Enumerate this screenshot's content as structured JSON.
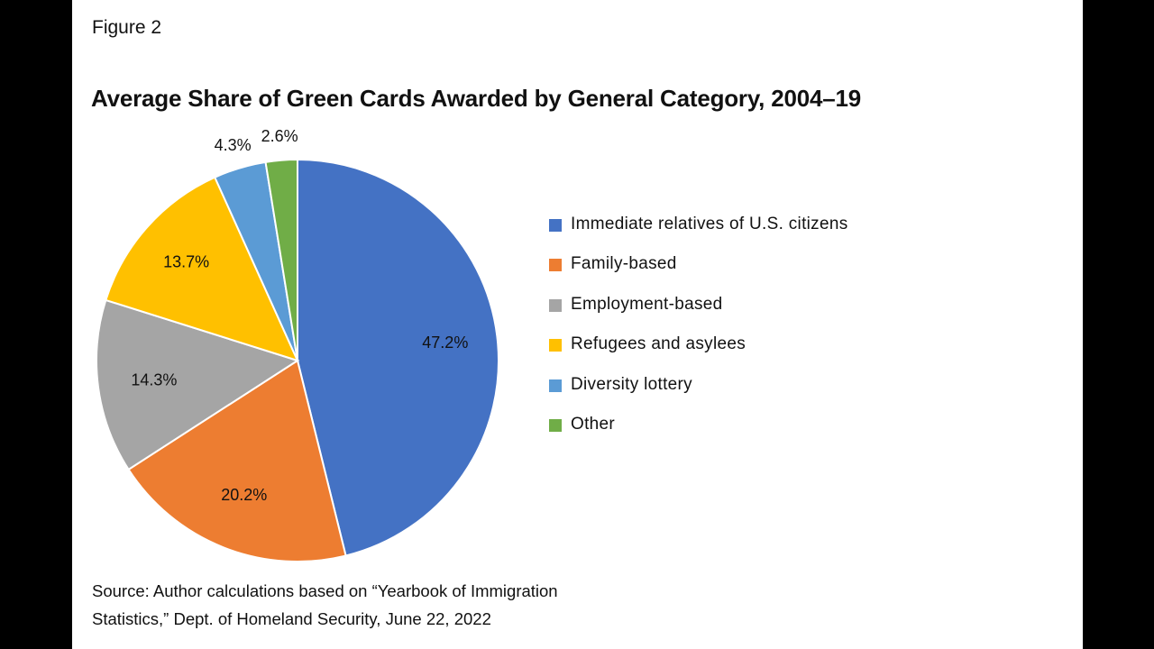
{
  "figure_label": "Figure 2",
  "source_line1": "Source: Author calculations based on “Yearbook of Immigration",
  "source_line2": "Statistics,” Dept. of Homeland Security, June 22, 2022",
  "chart_data": {
    "type": "pie",
    "title": "Average Share of Green Cards Awarded by General Category, 2004–19",
    "legend_position": "right",
    "slices": [
      {
        "label": "Immediate relatives of U.S. citizens",
        "value": 47.2,
        "display": "47.2%",
        "color": "#4472C4"
      },
      {
        "label": "Family-based",
        "value": 20.2,
        "display": "20.2%",
        "color": "#ED7D31"
      },
      {
        "label": "Employment-based",
        "value": 14.3,
        "display": "14.3%",
        "color": "#A5A5A5"
      },
      {
        "label": "Refugees and asylees",
        "value": 13.7,
        "display": "13.7%",
        "color": "#FFC000"
      },
      {
        "label": "Diversity lottery",
        "value": 4.3,
        "display": "4.3%",
        "color": "#5B9BD5"
      },
      {
        "label": "Other",
        "value": 2.6,
        "display": "2.6%",
        "color": "#70AD47"
      }
    ]
  }
}
